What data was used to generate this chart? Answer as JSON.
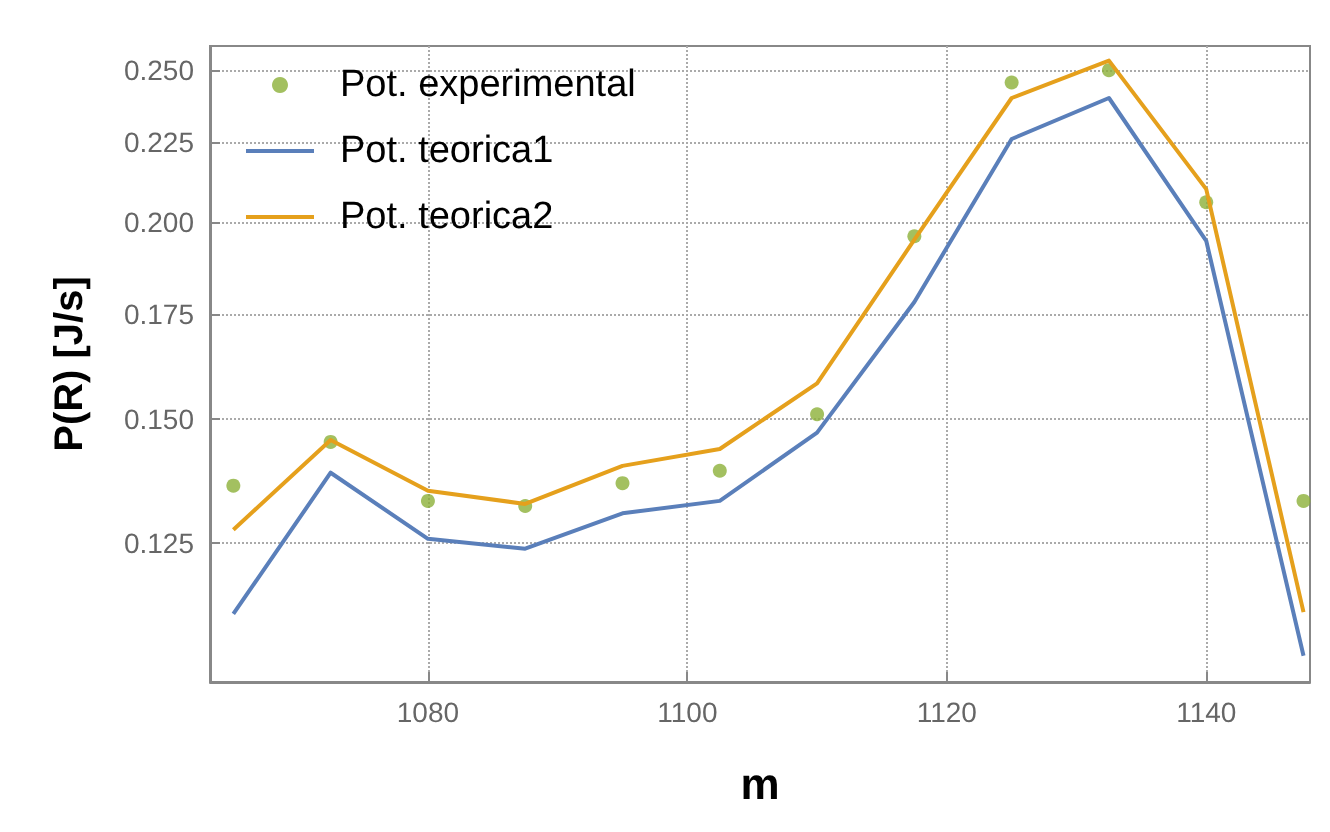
{
  "chart_data": {
    "type": "line",
    "xlabel": "m",
    "ylabel": "P(R) [J/s]",
    "x": [
      1065,
      1072.5,
      1080,
      1087.5,
      1095,
      1102.5,
      1110,
      1117.5,
      1125,
      1132.5,
      1140,
      1147.5
    ],
    "series": [
      {
        "name": "Pot. experimental",
        "type": "scatter",
        "marker": "circle",
        "color": "#8cb038",
        "values": [
          0.136,
          0.145,
          0.133,
          0.132,
          0.1365,
          0.139,
          0.151,
          0.196,
          0.2455,
          0.25,
          0.206,
          0.133
        ]
      },
      {
        "name": "Pot. teorica1",
        "type": "line",
        "color": "#5a7fba",
        "values": [
          0.1127,
          0.1386,
          0.1258,
          0.124,
          0.1306,
          0.133,
          0.147,
          0.178,
          0.226,
          0.24,
          0.1947,
          0.106
        ]
      },
      {
        "name": "Pot. teorica2",
        "type": "line",
        "color": "#e5a01c",
        "values": [
          0.1275,
          0.1454,
          0.135,
          0.1324,
          0.14,
          0.1435,
          0.158,
          0.195,
          0.24,
          0.2535,
          0.21,
          0.113
        ]
      }
    ],
    "xlim": [
      1063.2,
      1148
    ],
    "xticks": [
      1080,
      1100,
      1120,
      1140
    ],
    "ylim": [
      0.102,
      0.259
    ],
    "yticks": [
      {
        "value": 0.125,
        "label": "0.125"
      },
      {
        "value": 0.15,
        "label": "0.150"
      },
      {
        "value": 0.175,
        "label": "0.175"
      },
      {
        "value": 0.2,
        "label": "0.200"
      },
      {
        "value": 0.225,
        "label": "0.225"
      },
      {
        "value": 0.25,
        "label": "0.250"
      }
    ],
    "log": "y",
    "grid": true,
    "legend": "top left",
    "marker": "none",
    "line_style": "solid"
  }
}
